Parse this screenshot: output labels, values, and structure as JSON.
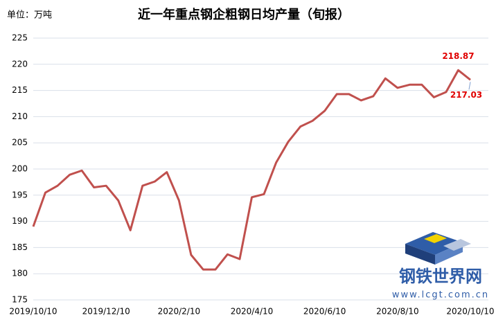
{
  "unit": "单位：万吨",
  "watermark": {
    "name": "钢铁世界网",
    "url": "www.lcgt.com.cn"
  },
  "chart_data": {
    "type": "line",
    "title": "近一年重点钢企粗钢日均产量（旬报）",
    "categories": [
      "2019/10/10",
      null,
      null,
      null,
      null,
      null,
      "2019/12/10",
      null,
      null,
      null,
      null,
      null,
      "2020/2/10",
      null,
      null,
      null,
      null,
      null,
      "2020/4/10",
      null,
      null,
      null,
      null,
      null,
      "2020/6/10",
      null,
      null,
      null,
      null,
      null,
      "2020/8/10",
      null,
      null,
      null,
      null,
      null,
      "2020/10/10"
    ],
    "series": [
      {
        "name": "粗钢日均产量",
        "color": "#c0504d",
        "values": [
          189.0,
          195.5,
          196.8,
          198.9,
          199.7,
          196.5,
          196.8,
          194.0,
          188.3,
          196.8,
          197.6,
          199.4,
          194.0,
          183.6,
          180.8,
          180.8,
          183.7,
          182.8,
          194.6,
          195.2,
          201.2,
          205.2,
          208.1,
          209.2,
          211.1,
          214.3,
          214.3,
          213.1,
          213.9,
          217.3,
          215.5,
          216.1,
          216.1,
          213.7,
          214.7,
          218.87,
          217.03
        ]
      }
    ],
    "ylim": [
      175,
      225
    ],
    "yticks": [
      175,
      180,
      185,
      190,
      195,
      200,
      205,
      210,
      215,
      220,
      225
    ],
    "grid": true
  }
}
